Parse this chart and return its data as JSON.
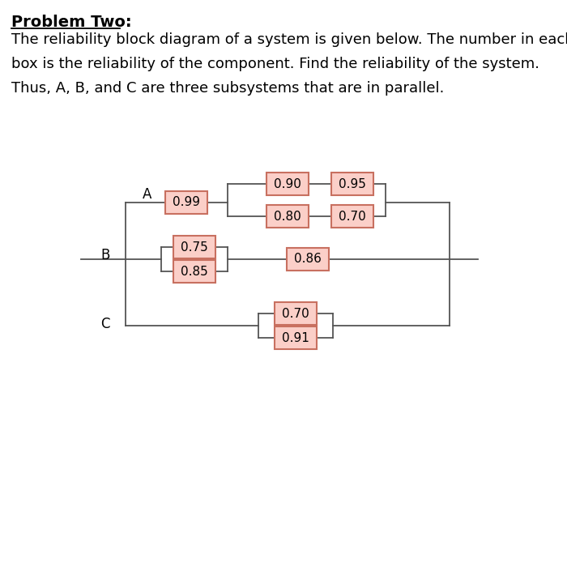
{
  "title_line": "Problem Two:",
  "body_lines": [
    "The reliability block diagram of a system is given below. The number in each",
    "box is the reliability of the component. Find the reliability of the system.",
    "Thus, A, B, and C are three subsystems that are in parallel."
  ],
  "box_fill": "#FBCFC8",
  "box_edge": "#C87060",
  "bg_color": "#FFFFFF",
  "line_color": "#555555",
  "text_color": "#000000",
  "font_size_title": 14,
  "font_size_body": 13,
  "font_size_box": 11,
  "font_size_label": 12
}
